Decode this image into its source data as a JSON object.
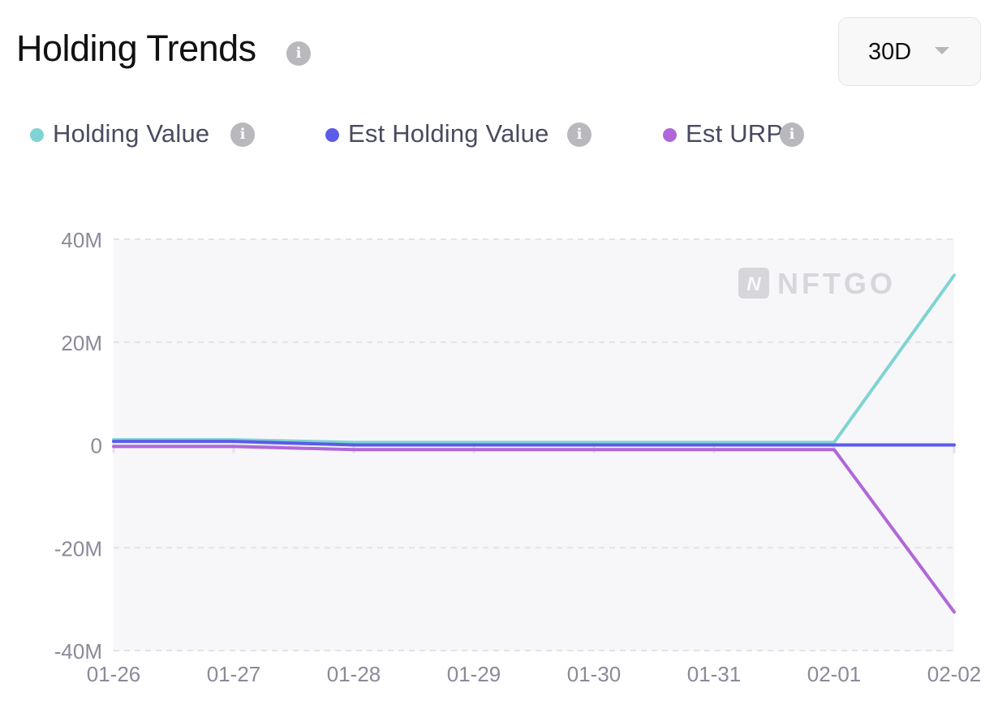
{
  "header": {
    "title": "Holding Trends",
    "info_icon": "info-icon"
  },
  "range_select": {
    "value": "30D",
    "caret_icon": "caret-down-icon"
  },
  "legend": [
    {
      "label": "Holding Value",
      "color": "#7fd4d3",
      "info_icon": "info-icon"
    },
    {
      "label": "Est Holding Value",
      "color": "#5b5ce8",
      "info_icon": "info-icon"
    },
    {
      "label": "Est URP",
      "color": "#b067d9",
      "info_icon": "info-icon"
    }
  ],
  "watermark": {
    "text": "NFTGO",
    "logo_letter": "N"
  },
  "chart_data": {
    "type": "line",
    "categories": [
      "01-26",
      "01-27",
      "01-28",
      "01-29",
      "01-30",
      "01-31",
      "02-01",
      "02-02"
    ],
    "y_tick_labels": [
      "40M",
      "20M",
      "0",
      "-20M",
      "-40M"
    ],
    "ylim": [
      -40000000,
      40000000
    ],
    "y_ticks": [
      40000000,
      20000000,
      0,
      -20000000,
      -40000000
    ],
    "grid": true,
    "series": [
      {
        "name": "Holding Value",
        "color": "#7fd4d3",
        "values": [
          1000000,
          1000000,
          500000,
          500000,
          500000,
          500000,
          500000,
          33000000
        ]
      },
      {
        "name": "Est Holding Value",
        "color": "#5b5ce8",
        "values": [
          700000,
          700000,
          0,
          0,
          0,
          0,
          0,
          0
        ]
      },
      {
        "name": "Est URP",
        "color": "#b067d9",
        "values": [
          -300000,
          -300000,
          -900000,
          -900000,
          -900000,
          -900000,
          -900000,
          -32500000
        ]
      }
    ]
  }
}
